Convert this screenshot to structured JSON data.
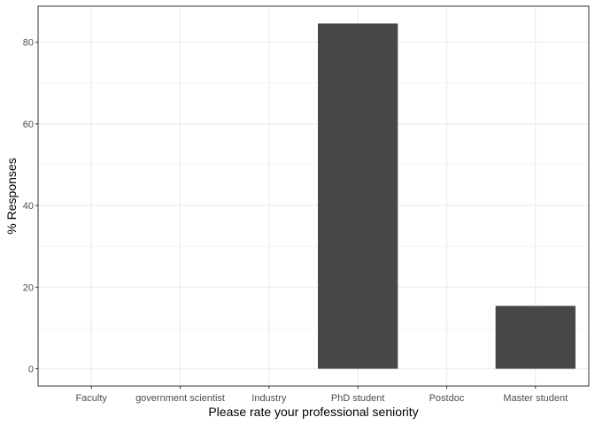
{
  "chart_data": {
    "type": "bar",
    "title": "",
    "xlabel": "Please rate your professional seniority",
    "ylabel": "% Responses",
    "categories": [
      "Faculty",
      "government scientist",
      "Industry",
      "PhD student",
      "Postdoc",
      "Master student"
    ],
    "values": [
      0,
      0,
      0,
      84.6,
      0,
      15.4
    ],
    "ylim": [
      -4.23,
      88.83
    ],
    "yticks": [
      0,
      20,
      40,
      60,
      80
    ],
    "grid": true,
    "legend": "none",
    "bar_color": "#474747",
    "grid_color": "#ebebeb",
    "panel_border_color": "#333333"
  }
}
